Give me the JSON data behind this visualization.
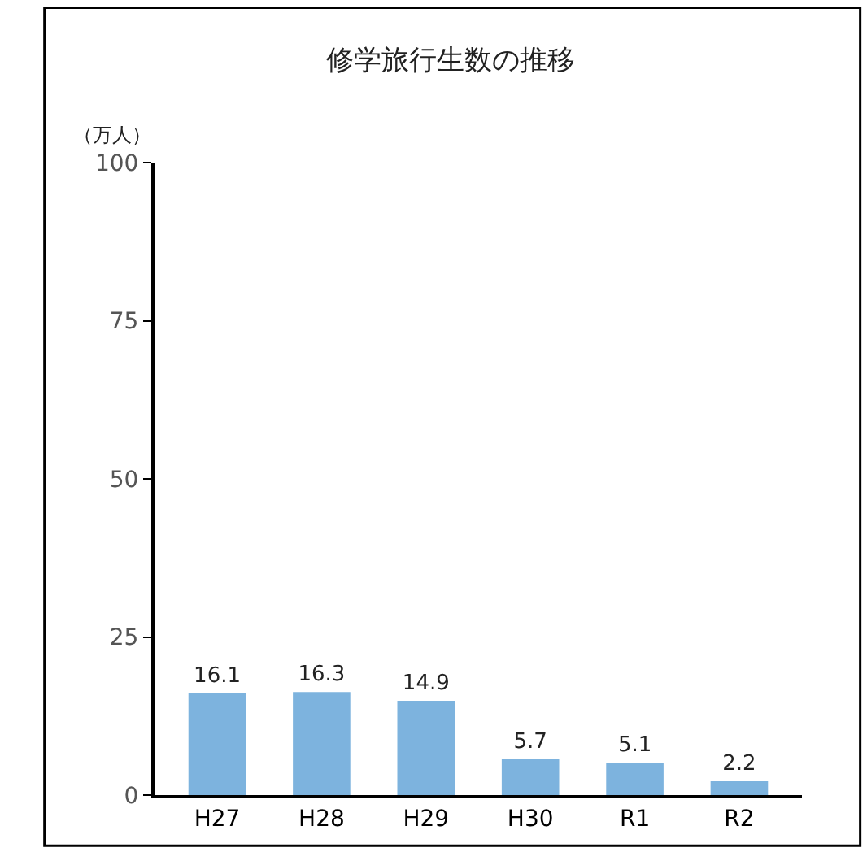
{
  "chart_data": {
    "type": "bar",
    "title": "修学旅行生数の推移",
    "ylabel": "（万人）",
    "categories": [
      "H27",
      "H28",
      "H29",
      "H30",
      "R1",
      "R2"
    ],
    "values": [
      16.1,
      16.3,
      14.9,
      5.7,
      5.1,
      2.2
    ],
    "color": "#7db3de",
    "ylim": [
      0,
      100
    ],
    "yticks": [
      0,
      25,
      50,
      75,
      100
    ],
    "data_labels": true
  }
}
